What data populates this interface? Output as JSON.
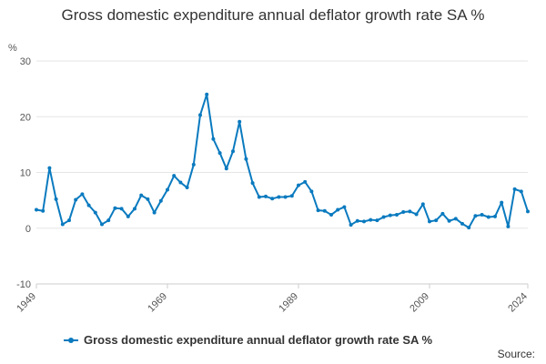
{
  "colors": {
    "series": "#0a7abf",
    "grid": "#e6e6e6",
    "axis": "#cccccc",
    "text": "#555555"
  },
  "chart_data": {
    "type": "line",
    "title": "Gross domestic expenditure annual deflator growth rate SA %",
    "ylabel": "%",
    "ylim": [
      -10,
      30
    ],
    "yticks": [
      -10,
      0,
      10,
      20,
      30
    ],
    "xlim": [
      1949,
      2024
    ],
    "xticks": [
      "1949",
      "1969",
      "1989",
      "2009",
      "2024"
    ],
    "grid": true,
    "legend_position": "bottom-left",
    "series": [
      {
        "name": "Gross domestic expenditure annual deflator growth rate SA %",
        "x": [
          1949,
          1950,
          1951,
          1952,
          1953,
          1954,
          1955,
          1956,
          1957,
          1958,
          1959,
          1960,
          1961,
          1962,
          1963,
          1964,
          1965,
          1966,
          1967,
          1968,
          1969,
          1970,
          1971,
          1972,
          1973,
          1974,
          1975,
          1976,
          1977,
          1978,
          1979,
          1980,
          1981,
          1982,
          1983,
          1984,
          1985,
          1986,
          1987,
          1988,
          1989,
          1990,
          1991,
          1992,
          1993,
          1994,
          1995,
          1996,
          1997,
          1998,
          1999,
          2000,
          2001,
          2002,
          2003,
          2004,
          2005,
          2006,
          2007,
          2008,
          2009,
          2010,
          2011,
          2012,
          2013,
          2014,
          2015,
          2016,
          2017,
          2018,
          2019,
          2020,
          2021,
          2022,
          2023,
          2024
        ],
        "values": [
          3.3,
          3.1,
          10.8,
          5.2,
          0.7,
          1.4,
          5.1,
          6.1,
          4.1,
          2.8,
          0.7,
          1.4,
          3.6,
          3.5,
          2.1,
          3.5,
          5.9,
          5.2,
          2.8,
          4.9,
          6.9,
          9.4,
          8.2,
          7.3,
          11.4,
          20.3,
          24.0,
          16.0,
          13.5,
          10.7,
          13.8,
          19.1,
          12.4,
          8.1,
          5.6,
          5.7,
          5.3,
          5.6,
          5.6,
          5.8,
          7.7,
          8.3,
          6.6,
          3.2,
          3.1,
          2.4,
          3.3,
          3.8,
          0.6,
          1.3,
          1.2,
          1.5,
          1.4,
          2.0,
          2.3,
          2.4,
          2.9,
          3.0,
          2.5,
          4.3,
          1.2,
          1.4,
          2.6,
          1.3,
          1.7,
          0.8,
          0.1,
          2.2,
          2.4,
          2.0,
          2.1,
          4.6,
          0.3,
          7.0,
          6.6,
          3.0
        ]
      }
    ]
  },
  "legend": {
    "label": "Gross domestic expenditure annual deflator growth rate SA %"
  },
  "source_label": "Source:"
}
